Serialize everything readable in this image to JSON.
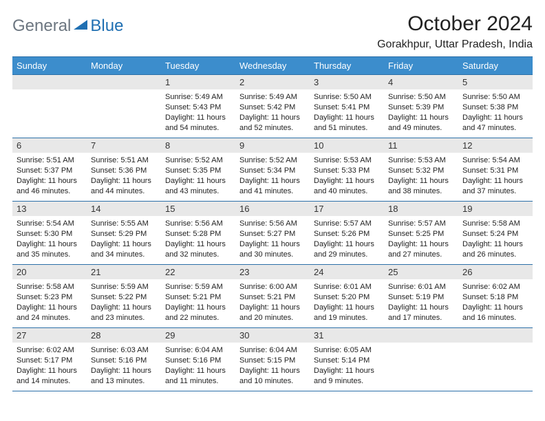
{
  "logo": {
    "text1": "General",
    "text2": "Blue"
  },
  "title": "October 2024",
  "location": "Gorakhpur, Uttar Pradesh, India",
  "colors": {
    "header_bg": "#3c8dcc",
    "header_border": "#2b6fa8",
    "daynum_bg": "#e8e8e8",
    "logo_gray": "#6c7680",
    "logo_blue": "#1f6fb2"
  },
  "daynames": [
    "Sunday",
    "Monday",
    "Tuesday",
    "Wednesday",
    "Thursday",
    "Friday",
    "Saturday"
  ],
  "weeks": [
    [
      null,
      null,
      {
        "n": "1",
        "sr": "5:49 AM",
        "ss": "5:43 PM",
        "dl": "11 hours and 54 minutes."
      },
      {
        "n": "2",
        "sr": "5:49 AM",
        "ss": "5:42 PM",
        "dl": "11 hours and 52 minutes."
      },
      {
        "n": "3",
        "sr": "5:50 AM",
        "ss": "5:41 PM",
        "dl": "11 hours and 51 minutes."
      },
      {
        "n": "4",
        "sr": "5:50 AM",
        "ss": "5:39 PM",
        "dl": "11 hours and 49 minutes."
      },
      {
        "n": "5",
        "sr": "5:50 AM",
        "ss": "5:38 PM",
        "dl": "11 hours and 47 minutes."
      }
    ],
    [
      {
        "n": "6",
        "sr": "5:51 AM",
        "ss": "5:37 PM",
        "dl": "11 hours and 46 minutes."
      },
      {
        "n": "7",
        "sr": "5:51 AM",
        "ss": "5:36 PM",
        "dl": "11 hours and 44 minutes."
      },
      {
        "n": "8",
        "sr": "5:52 AM",
        "ss": "5:35 PM",
        "dl": "11 hours and 43 minutes."
      },
      {
        "n": "9",
        "sr": "5:52 AM",
        "ss": "5:34 PM",
        "dl": "11 hours and 41 minutes."
      },
      {
        "n": "10",
        "sr": "5:53 AM",
        "ss": "5:33 PM",
        "dl": "11 hours and 40 minutes."
      },
      {
        "n": "11",
        "sr": "5:53 AM",
        "ss": "5:32 PM",
        "dl": "11 hours and 38 minutes."
      },
      {
        "n": "12",
        "sr": "5:54 AM",
        "ss": "5:31 PM",
        "dl": "11 hours and 37 minutes."
      }
    ],
    [
      {
        "n": "13",
        "sr": "5:54 AM",
        "ss": "5:30 PM",
        "dl": "11 hours and 35 minutes."
      },
      {
        "n": "14",
        "sr": "5:55 AM",
        "ss": "5:29 PM",
        "dl": "11 hours and 34 minutes."
      },
      {
        "n": "15",
        "sr": "5:56 AM",
        "ss": "5:28 PM",
        "dl": "11 hours and 32 minutes."
      },
      {
        "n": "16",
        "sr": "5:56 AM",
        "ss": "5:27 PM",
        "dl": "11 hours and 30 minutes."
      },
      {
        "n": "17",
        "sr": "5:57 AM",
        "ss": "5:26 PM",
        "dl": "11 hours and 29 minutes."
      },
      {
        "n": "18",
        "sr": "5:57 AM",
        "ss": "5:25 PM",
        "dl": "11 hours and 27 minutes."
      },
      {
        "n": "19",
        "sr": "5:58 AM",
        "ss": "5:24 PM",
        "dl": "11 hours and 26 minutes."
      }
    ],
    [
      {
        "n": "20",
        "sr": "5:58 AM",
        "ss": "5:23 PM",
        "dl": "11 hours and 24 minutes."
      },
      {
        "n": "21",
        "sr": "5:59 AM",
        "ss": "5:22 PM",
        "dl": "11 hours and 23 minutes."
      },
      {
        "n": "22",
        "sr": "5:59 AM",
        "ss": "5:21 PM",
        "dl": "11 hours and 22 minutes."
      },
      {
        "n": "23",
        "sr": "6:00 AM",
        "ss": "5:21 PM",
        "dl": "11 hours and 20 minutes."
      },
      {
        "n": "24",
        "sr": "6:01 AM",
        "ss": "5:20 PM",
        "dl": "11 hours and 19 minutes."
      },
      {
        "n": "25",
        "sr": "6:01 AM",
        "ss": "5:19 PM",
        "dl": "11 hours and 17 minutes."
      },
      {
        "n": "26",
        "sr": "6:02 AM",
        "ss": "5:18 PM",
        "dl": "11 hours and 16 minutes."
      }
    ],
    [
      {
        "n": "27",
        "sr": "6:02 AM",
        "ss": "5:17 PM",
        "dl": "11 hours and 14 minutes."
      },
      {
        "n": "28",
        "sr": "6:03 AM",
        "ss": "5:16 PM",
        "dl": "11 hours and 13 minutes."
      },
      {
        "n": "29",
        "sr": "6:04 AM",
        "ss": "5:16 PM",
        "dl": "11 hours and 11 minutes."
      },
      {
        "n": "30",
        "sr": "6:04 AM",
        "ss": "5:15 PM",
        "dl": "11 hours and 10 minutes."
      },
      {
        "n": "31",
        "sr": "6:05 AM",
        "ss": "5:14 PM",
        "dl": "11 hours and 9 minutes."
      },
      null,
      null
    ]
  ],
  "labels": {
    "sunrise": "Sunrise: ",
    "sunset": "Sunset: ",
    "daylight": "Daylight: "
  }
}
